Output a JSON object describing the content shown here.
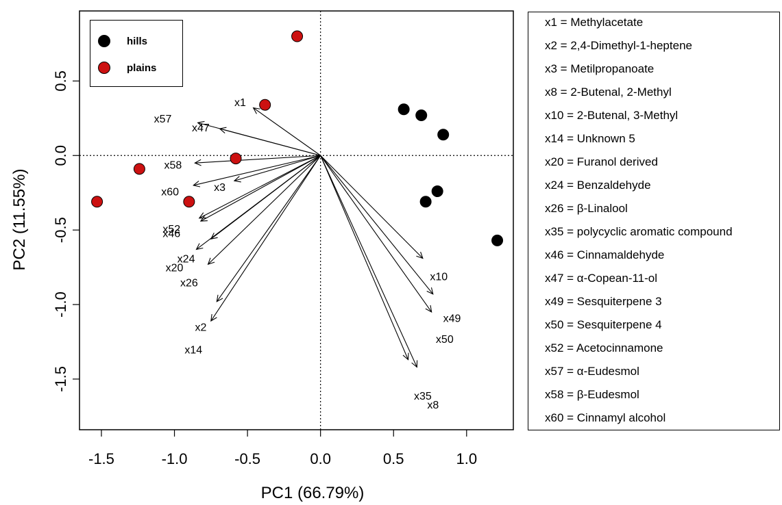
{
  "chart_data": {
    "type": "scatter",
    "xlabel": "PC1 (66.79%)",
    "ylabel": "PC2 (11.55%)",
    "xlim": [
      -1.65,
      1.32
    ],
    "ylim": [
      -1.84,
      0.97
    ],
    "xticks": [
      -1.5,
      -1.0,
      -0.5,
      0.0,
      0.5,
      1.0
    ],
    "xtick_labels": [
      "-1.5",
      "-1.0",
      "-0.5",
      "0.0",
      "0.5",
      "1.0"
    ],
    "yticks": [
      -1.5,
      -1.0,
      -0.5,
      0.0,
      0.5
    ],
    "ytick_labels": [
      "-1.5",
      "-1.0",
      "-0.5",
      "0.0",
      "0.5"
    ],
    "reference_lines": {
      "x": 0,
      "y": 0,
      "style": "dotted"
    },
    "legend": {
      "placement": "top-left",
      "entries": [
        {
          "label": "hills",
          "color": "#000000"
        },
        {
          "label": "plains",
          "color": "#cc1111"
        }
      ]
    },
    "series": [
      {
        "name": "hills",
        "color": "#000000",
        "points": [
          {
            "x": 0.57,
            "y": 0.31
          },
          {
            "x": 0.69,
            "y": 0.27
          },
          {
            "x": 0.84,
            "y": 0.14
          },
          {
            "x": 0.8,
            "y": -0.24
          },
          {
            "x": 0.72,
            "y": -0.31
          },
          {
            "x": 1.21,
            "y": -0.57
          }
        ]
      },
      {
        "name": "plains",
        "color": "#cc1111",
        "points": [
          {
            "x": -0.16,
            "y": 0.8
          },
          {
            "x": -0.38,
            "y": 0.34
          },
          {
            "x": -0.58,
            "y": -0.02
          },
          {
            "x": -1.24,
            "y": -0.09
          },
          {
            "x": -0.9,
            "y": -0.31
          },
          {
            "x": -1.53,
            "y": -0.31
          }
        ]
      }
    ],
    "loadings": [
      {
        "name": "x1",
        "x": -0.46,
        "y": 0.32,
        "label_x": -0.55,
        "label_y": 0.36
      },
      {
        "name": "x57",
        "x": -0.84,
        "y": 0.22,
        "label_x": -1.08,
        "label_y": 0.25
      },
      {
        "name": "x47",
        "x": -0.69,
        "y": 0.18,
        "label_x": -0.82,
        "label_y": 0.19
      },
      {
        "name": "x58",
        "x": -0.86,
        "y": -0.05,
        "label_x": -1.01,
        "label_y": -0.06
      },
      {
        "name": "x3",
        "x": -0.59,
        "y": -0.17,
        "label_x": -0.69,
        "label_y": -0.21
      },
      {
        "name": "x60",
        "x": -0.87,
        "y": -0.2,
        "label_x": -1.03,
        "label_y": -0.24
      },
      {
        "name": "x52",
        "x": -0.83,
        "y": -0.42,
        "label_x": -1.02,
        "label_y": -0.49
      },
      {
        "name": "x46",
        "x": -0.82,
        "y": -0.44,
        "label_x": -1.02,
        "label_y": -0.52
      },
      {
        "name": "x24",
        "x": -0.85,
        "y": -0.63,
        "label_x": -0.92,
        "label_y": -0.69
      },
      {
        "name": "x20",
        "x": -0.75,
        "y": -0.56,
        "label_x": -1.0,
        "label_y": -0.75
      },
      {
        "name": "x26",
        "x": -0.77,
        "y": -0.73,
        "label_x": -0.9,
        "label_y": -0.85
      },
      {
        "name": "x2",
        "x": -0.71,
        "y": -0.98,
        "label_x": -0.82,
        "label_y": -1.15
      },
      {
        "name": "x14",
        "x": -0.75,
        "y": -1.11,
        "label_x": -0.87,
        "label_y": -1.3
      },
      {
        "name": "x10",
        "x": 0.7,
        "y": -0.69,
        "label_x": 0.81,
        "label_y": -0.81
      },
      {
        "name": "x49",
        "x": 0.77,
        "y": -0.93,
        "label_x": 0.9,
        "label_y": -1.09
      },
      {
        "name": "x50",
        "x": 0.76,
        "y": -1.05,
        "label_x": 0.85,
        "label_y": -1.23
      },
      {
        "name": "x35",
        "x": 0.6,
        "y": -1.37,
        "label_x": 0.7,
        "label_y": -1.61
      },
      {
        "name": "x8",
        "x": 0.66,
        "y": -1.42,
        "label_x": 0.77,
        "label_y": -1.67
      }
    ],
    "key": [
      "x1 = Methylacetate",
      "x2 = 2,4-Dimethyl-1-heptene",
      "x3 = Metilpropanoate",
      "x8 = 2-Butenal, 2-Methyl",
      "x10 = 2-Butenal, 3-Methyl",
      "x14 = Unknown 5",
      "x20 = Furanol derived",
      "x24 = Benzaldehyde",
      "x26 = β-Linalool",
      "x35 = polycyclic aromatic compound",
      "x46 = Cinnamaldehyde",
      "x47 = α-Copean-11-ol",
      "x49 = Sesquiterpene 3",
      "x50 = Sesquiterpene 4",
      "x52 = Acetocinnamone",
      "x57 = α-Eudesmol",
      "x58 = β-Eudesmol",
      "x60 = Cinnamyl alcohol"
    ]
  }
}
